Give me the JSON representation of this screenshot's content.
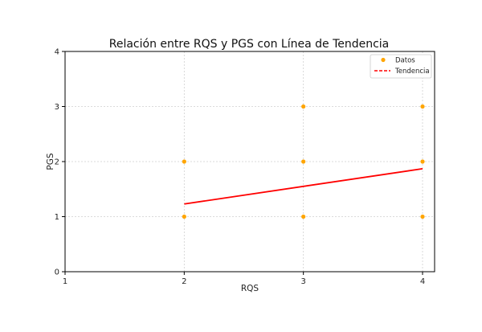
{
  "chart_data": {
    "type": "scatter",
    "title": "Relación entre RQS y PGS con Línea de Tendencia",
    "xlabel": "RQS",
    "ylabel": "PGS",
    "xlim": [
      1,
      4.1
    ],
    "ylim": [
      0,
      4
    ],
    "x_ticks": [
      "1",
      "2",
      "3",
      "4"
    ],
    "y_ticks": [
      "0",
      "1",
      "2",
      "3",
      "4"
    ],
    "grid": true,
    "legend_position": "top-right",
    "series": [
      {
        "name": "Datos",
        "kind": "scatter",
        "color": "#FFA500",
        "points": [
          {
            "x": 2,
            "y": 1
          },
          {
            "x": 2,
            "y": 2
          },
          {
            "x": 3,
            "y": 1
          },
          {
            "x": 3,
            "y": 2
          },
          {
            "x": 3,
            "y": 3
          },
          {
            "x": 4,
            "y": 1
          },
          {
            "x": 4,
            "y": 2
          },
          {
            "x": 4,
            "y": 3
          }
        ]
      },
      {
        "name": "Tendencia",
        "kind": "line",
        "color": "#FF0000",
        "points": [
          {
            "x": 2,
            "y": 1.23
          },
          {
            "x": 4,
            "y": 1.87
          }
        ]
      }
    ]
  }
}
